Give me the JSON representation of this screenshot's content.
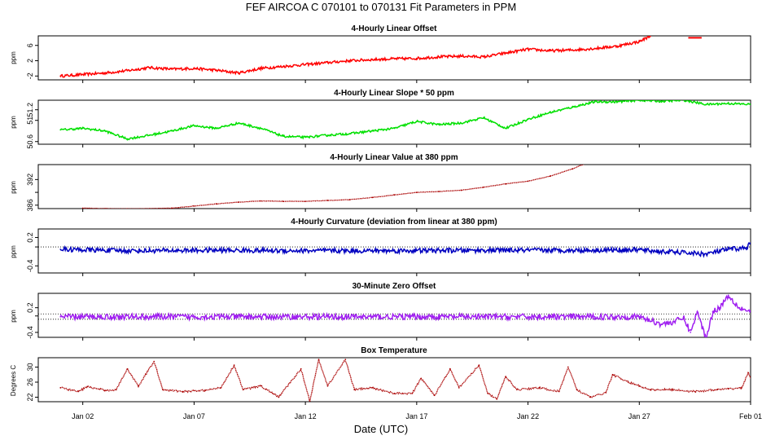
{
  "figure": {
    "title": "FEF   AIRCOA C  070101 to 070131   Fit Parameters in PPM",
    "xlabel": "Date (UTC)",
    "x_range_days": [
      0,
      32
    ],
    "x_ticks": [
      {
        "day": 2,
        "label": "Jan 02"
      },
      {
        "day": 7,
        "label": "Jan 07"
      },
      {
        "day": 12,
        "label": "Jan 12"
      },
      {
        "day": 17,
        "label": "Jan 17"
      },
      {
        "day": 22,
        "label": "Jan 22"
      },
      {
        "day": 27,
        "label": "Jan 27"
      },
      {
        "day": 32,
        "label": "Feb 01"
      }
    ]
  },
  "chart_data": [
    {
      "type": "line",
      "title": "4-Hourly Linear Offset",
      "ylabel": "ppm",
      "ylim": [
        -3,
        8.5
      ],
      "yticks": [
        -2,
        2,
        6
      ],
      "color": "#ff0000",
      "style": "line",
      "noise": 0.35,
      "ref": null,
      "points": [
        [
          1,
          -2
        ],
        [
          1.5,
          -1.8
        ],
        [
          2,
          -1.6
        ],
        [
          3,
          -1.2
        ],
        [
          4,
          -0.6
        ],
        [
          5,
          0.2
        ],
        [
          6,
          -0.2
        ],
        [
          7,
          0
        ],
        [
          8,
          -0.5
        ],
        [
          9,
          -1.2
        ],
        [
          10,
          0
        ],
        [
          11,
          0.5
        ],
        [
          12,
          1
        ],
        [
          13,
          1.5
        ],
        [
          14,
          2
        ],
        [
          15,
          2.3
        ],
        [
          16,
          2.5
        ],
        [
          17,
          2.6
        ],
        [
          18,
          3
        ],
        [
          19,
          3.2
        ],
        [
          20,
          3
        ],
        [
          21,
          4
        ],
        [
          22,
          5
        ],
        [
          23,
          4.6
        ],
        [
          24,
          4.8
        ],
        [
          25,
          5.2
        ],
        [
          26,
          5.8
        ],
        [
          27,
          7
        ],
        [
          27.5,
          8.5
        ]
      ],
      "extra_segment": [
        [
          29.2,
          8.0
        ],
        [
          29.8,
          8.0
        ]
      ]
    },
    {
      "type": "line",
      "title": "4-Hourly Linear Slope * 50 ppm",
      "ylabel": "ppm",
      "ylim": [
        50.55,
        51.38
      ],
      "yticks": [
        50.6,
        51.0,
        51.2
      ],
      "ytick_labels": [
        "50.6",
        "51",
        "51.2"
      ],
      "color": "#00e000",
      "style": "line",
      "noise": 0.02,
      "ref": null,
      "points": [
        [
          1,
          50.82
        ],
        [
          2,
          50.85
        ],
        [
          3,
          50.8
        ],
        [
          4,
          50.65
        ],
        [
          5,
          50.72
        ],
        [
          6,
          50.8
        ],
        [
          7,
          50.9
        ],
        [
          8,
          50.85
        ],
        [
          9,
          50.95
        ],
        [
          10,
          50.85
        ],
        [
          11,
          50.7
        ],
        [
          12,
          50.68
        ],
        [
          13,
          50.72
        ],
        [
          14,
          50.75
        ],
        [
          15,
          50.8
        ],
        [
          16,
          50.85
        ],
        [
          17,
          50.98
        ],
        [
          18,
          50.92
        ],
        [
          19,
          50.95
        ],
        [
          20,
          51.05
        ],
        [
          21,
          50.85
        ],
        [
          22,
          51.02
        ],
        [
          23,
          51.15
        ],
        [
          24,
          51.25
        ],
        [
          25,
          51.35
        ],
        [
          26,
          51.35
        ],
        [
          27,
          51.38
        ],
        [
          28,
          51.36
        ],
        [
          29,
          51.38
        ],
        [
          30,
          51.3
        ],
        [
          31,
          51.32
        ],
        [
          32,
          51.3
        ]
      ]
    },
    {
      "type": "line",
      "title": "4-Hourly Linear Value at 380 ppm",
      "ylabel": "ppm",
      "ylim": [
        385.2,
        395.5
      ],
      "yticks": [
        386,
        389,
        392
      ],
      "ytick_labels": [
        "386",
        "",
        "392"
      ],
      "color": "#aa0000",
      "style": "dots",
      "noise": 0.04,
      "ref": null,
      "points": [
        [
          2,
          385.3
        ],
        [
          3,
          385.2
        ],
        [
          4,
          385.15
        ],
        [
          5,
          385.2
        ],
        [
          6,
          385.3
        ],
        [
          7,
          385.8
        ],
        [
          8,
          386.3
        ],
        [
          9,
          386.7
        ],
        [
          10,
          387
        ],
        [
          11,
          386.9
        ],
        [
          12,
          386.9
        ],
        [
          13,
          387.1
        ],
        [
          14,
          387.3
        ],
        [
          15,
          387.8
        ],
        [
          16,
          388.4
        ],
        [
          17,
          389
        ],
        [
          18,
          389.2
        ],
        [
          19,
          389.5
        ],
        [
          20,
          390.2
        ],
        [
          21,
          391
        ],
        [
          22,
          391.6
        ],
        [
          23,
          392.8
        ],
        [
          24,
          394.5
        ],
        [
          24.5,
          395.6
        ]
      ]
    },
    {
      "type": "line",
      "title": "4-Hourly Curvature (deviation from linear at 380 ppm)",
      "ylabel": "ppm",
      "ylim": [
        -0.55,
        0.38
      ],
      "yticks": [
        -0.4,
        0.0,
        0.2
      ],
      "ytick_labels": [
        "-0.4",
        "",
        "0.2"
      ],
      "color": "#0000c0",
      "style": "line",
      "noise": 0.05,
      "ref": 0,
      "points": [
        [
          1,
          -0.05
        ],
        [
          4,
          -0.08
        ],
        [
          8,
          -0.07
        ],
        [
          12,
          -0.08
        ],
        [
          16,
          -0.08
        ],
        [
          20,
          -0.07
        ],
        [
          24,
          -0.07
        ],
        [
          27,
          -0.06
        ],
        [
          28,
          -0.1
        ],
        [
          29,
          -0.12
        ],
        [
          30,
          -0.15
        ],
        [
          31,
          -0.05
        ],
        [
          31.8,
          -0.02
        ],
        [
          32,
          0.08
        ]
      ]
    },
    {
      "type": "line",
      "title": "30-Minute Zero Offset",
      "ylabel": "ppm",
      "ylim": [
        -0.52,
        0.55
      ],
      "yticks": [
        -0.4,
        0.0,
        0.2
      ],
      "ytick_labels": [
        "-0.4",
        "",
        "0.2"
      ],
      "color": "#a020f0",
      "style": "line",
      "noise": 0.07,
      "ref": 0.05,
      "ref2": -0.08,
      "points": [
        [
          1,
          -0.02
        ],
        [
          5,
          -0.02
        ],
        [
          10,
          -0.02
        ],
        [
          15,
          -0.02
        ],
        [
          20,
          -0.02
        ],
        [
          25,
          -0.02
        ],
        [
          27,
          -0.02
        ],
        [
          28,
          -0.2
        ],
        [
          28.5,
          -0.15
        ],
        [
          29,
          -0.05
        ],
        [
          29.3,
          -0.4
        ],
        [
          29.6,
          0.1
        ],
        [
          30,
          -0.55
        ],
        [
          30.3,
          0.1
        ],
        [
          30.6,
          0.2
        ],
        [
          31,
          0.5
        ],
        [
          31.5,
          0.2
        ],
        [
          32,
          0.1
        ]
      ]
    },
    {
      "type": "line",
      "title": "Box Temperature",
      "ylabel": "Degrees C",
      "ylim": [
        20.8,
        32.5
      ],
      "yticks": [
        22,
        26,
        30
      ],
      "ytick_labels": [
        "22",
        "26",
        "30"
      ],
      "color": "#aa0000",
      "style": "dots",
      "noise": 0.25,
      "ref": null,
      "points": [
        [
          1,
          24.5
        ],
        [
          1.8,
          23.5
        ],
        [
          2.2,
          24.8
        ],
        [
          3,
          23.8
        ],
        [
          3.5,
          24
        ],
        [
          4,
          29.5
        ],
        [
          4.5,
          25
        ],
        [
          5.2,
          31.5
        ],
        [
          5.6,
          24
        ],
        [
          6.5,
          23.5
        ],
        [
          7.5,
          23.8
        ],
        [
          8.2,
          24.5
        ],
        [
          8.8,
          30.5
        ],
        [
          9.2,
          24
        ],
        [
          10,
          25
        ],
        [
          10.8,
          22
        ],
        [
          11.8,
          29.5
        ],
        [
          12.2,
          21
        ],
        [
          12.6,
          32
        ],
        [
          13,
          25
        ],
        [
          13.8,
          32
        ],
        [
          14.2,
          24
        ],
        [
          15,
          24.5
        ],
        [
          16,
          23
        ],
        [
          16.8,
          23
        ],
        [
          17.2,
          27
        ],
        [
          17.8,
          22.5
        ],
        [
          18.5,
          29.5
        ],
        [
          18.9,
          24.5
        ],
        [
          19.8,
          30.5
        ],
        [
          20.2,
          23
        ],
        [
          20.6,
          21.5
        ],
        [
          21,
          27.5
        ],
        [
          21.5,
          24
        ],
        [
          22.5,
          24.5
        ],
        [
          23.4,
          23.5
        ],
        [
          23.8,
          30
        ],
        [
          24.2,
          24
        ],
        [
          24.8,
          22
        ],
        [
          25.5,
          23.2
        ],
        [
          25.8,
          28
        ],
        [
          26.5,
          26
        ],
        [
          27,
          25
        ],
        [
          27.5,
          24
        ],
        [
          28.5,
          24
        ],
        [
          29.5,
          23.5
        ],
        [
          30.5,
          24
        ],
        [
          31,
          24.2
        ],
        [
          31.6,
          24.5
        ],
        [
          31.9,
          28.5
        ],
        [
          32.1,
          25.5
        ]
      ]
    }
  ]
}
